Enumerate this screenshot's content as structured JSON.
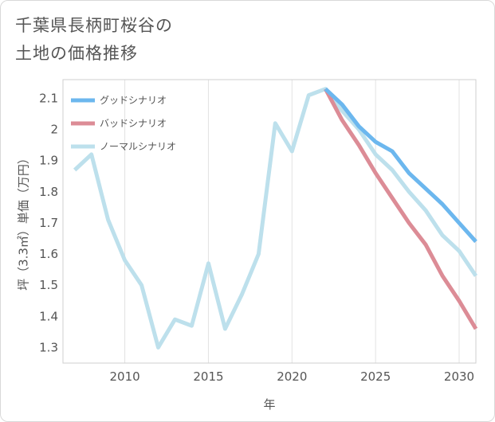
{
  "title_lines": [
    "千葉県長柄町桜谷の",
    "土地の価格推移"
  ],
  "chart_data": {
    "type": "line",
    "xlabel": "年",
    "ylabel": "坪（3.3㎡）単価（万円）",
    "xlim": [
      2006.3,
      2031
    ],
    "ylim": [
      1.25,
      2.16
    ],
    "x_ticks": [
      2010,
      2015,
      2020,
      2025,
      2030
    ],
    "y_ticks": [
      1.3,
      1.4,
      1.5,
      1.6,
      1.7,
      1.8,
      1.9,
      2,
      2.1
    ],
    "y_tick_labels": [
      "1.3",
      "1.4",
      "1.5",
      "1.6",
      "1.7",
      "1.8",
      "1.9",
      "2",
      "2.1"
    ],
    "grid": "vertical",
    "legend_position": "top-left",
    "series": [
      {
        "name": "グッドシナリオ",
        "color": "#6cb7ee",
        "x": [
          2022,
          2023,
          2024,
          2025,
          2026,
          2027,
          2028,
          2029,
          2030,
          2031
        ],
        "values": [
          2.13,
          2.08,
          2.01,
          1.96,
          1.93,
          1.86,
          1.81,
          1.76,
          1.7,
          1.64
        ]
      },
      {
        "name": "バッドシナリオ",
        "color": "#dc8c96",
        "x": [
          2022,
          2023,
          2024,
          2025,
          2026,
          2027,
          2028,
          2029,
          2030,
          2031
        ],
        "values": [
          2.13,
          2.03,
          1.95,
          1.86,
          1.78,
          1.7,
          1.63,
          1.53,
          1.45,
          1.36
        ]
      },
      {
        "name": "ノーマルシナリオ",
        "color": "#bde0ec",
        "x": [
          2007,
          2008,
          2009,
          2010,
          2011,
          2012,
          2013,
          2014,
          2015,
          2016,
          2017,
          2018,
          2019,
          2020,
          2021,
          2022,
          2023,
          2024,
          2025,
          2026,
          2027,
          2028,
          2029,
          2030,
          2031
        ],
        "values": [
          1.87,
          1.92,
          1.71,
          1.58,
          1.5,
          1.3,
          1.39,
          1.37,
          1.57,
          1.36,
          1.47,
          1.6,
          2.02,
          1.93,
          2.11,
          2.13,
          2.06,
          2.0,
          1.92,
          1.87,
          1.8,
          1.74,
          1.66,
          1.61,
          1.53
        ]
      }
    ]
  }
}
